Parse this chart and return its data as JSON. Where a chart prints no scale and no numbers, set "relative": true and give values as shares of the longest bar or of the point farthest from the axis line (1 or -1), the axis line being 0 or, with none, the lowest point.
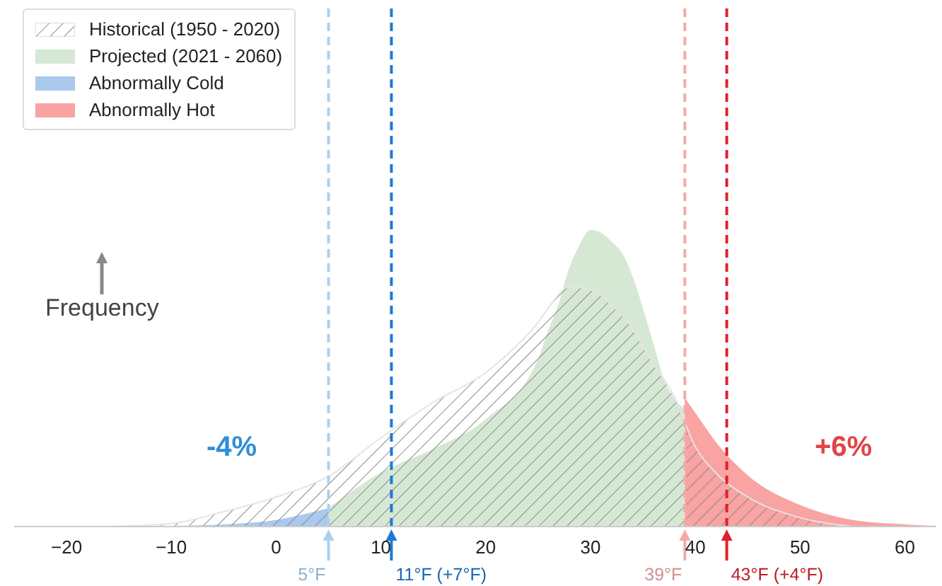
{
  "chart_data": {
    "type": "area",
    "relative": true,
    "ylabel": "Frequency",
    "xlim": [
      -25,
      63
    ],
    "xticks": [
      -20,
      -10,
      0,
      10,
      20,
      30,
      40,
      50,
      60
    ],
    "series": [
      {
        "name": "Historical (1950 - 2020)",
        "color": "#8a8a8a",
        "x": [
          -16,
          -10,
          -5,
          0,
          5,
          10,
          15,
          20,
          22,
          25,
          26,
          28,
          30,
          32,
          34,
          35,
          36,
          38,
          40,
          42,
          45,
          50,
          55
        ],
        "values": [
          0,
          0.01,
          0.05,
          0.1,
          0.17,
          0.3,
          0.42,
          0.52,
          0.58,
          0.69,
          0.74,
          0.81,
          0.8,
          0.75,
          0.67,
          0.61,
          0.55,
          0.44,
          0.27,
          0.18,
          0.1,
          0.03,
          0
        ]
      },
      {
        "name": "Projected (2021 - 2060)",
        "color": "#d5e8d4",
        "x": [
          5,
          10,
          15,
          20,
          25,
          26,
          27,
          28,
          29,
          30,
          31,
          32,
          33,
          34,
          35,
          36,
          37,
          38,
          39
        ],
        "values": [
          0.06,
          0.18,
          0.26,
          0.36,
          0.56,
          0.66,
          0.75,
          0.87,
          0.95,
          1,
          0.99,
          0.96,
          0.92,
          0.84,
          0.73,
          0.61,
          0.49,
          0.43,
          0.39
        ]
      },
      {
        "name": "Abnormally Cold",
        "color": "#aac9ee",
        "x": [
          -10,
          -5,
          0,
          5
        ],
        "values": [
          0,
          0.005,
          0.02,
          0.06
        ]
      },
      {
        "name": "Abnormally Hot",
        "color": "#f9a3a3",
        "x": [
          39,
          40,
          42,
          45,
          50,
          55,
          60,
          63
        ],
        "values": [
          0.43,
          0.38,
          0.28,
          0.17,
          0.07,
          0.02,
          0.005,
          0
        ]
      }
    ],
    "ref_lines": [
      {
        "axis": "x",
        "value": 5,
        "label": "5°F",
        "color": "#a9d0f0",
        "line_style": "dashed"
      },
      {
        "axis": "x",
        "value": 11,
        "label": "11°F (+7°F)",
        "color": "#1c7ad6",
        "line_style": "dashed"
      },
      {
        "axis": "x",
        "value": 39,
        "label": "39°F",
        "color": "#f5aaaa",
        "line_style": "dashed"
      },
      {
        "axis": "x",
        "value": 43,
        "label": "43°F (+4°F)",
        "color": "#e0202a",
        "line_style": "dashed"
      }
    ],
    "annotations": [
      "-4%",
      "+6%"
    ],
    "legend": "top left"
  }
}
